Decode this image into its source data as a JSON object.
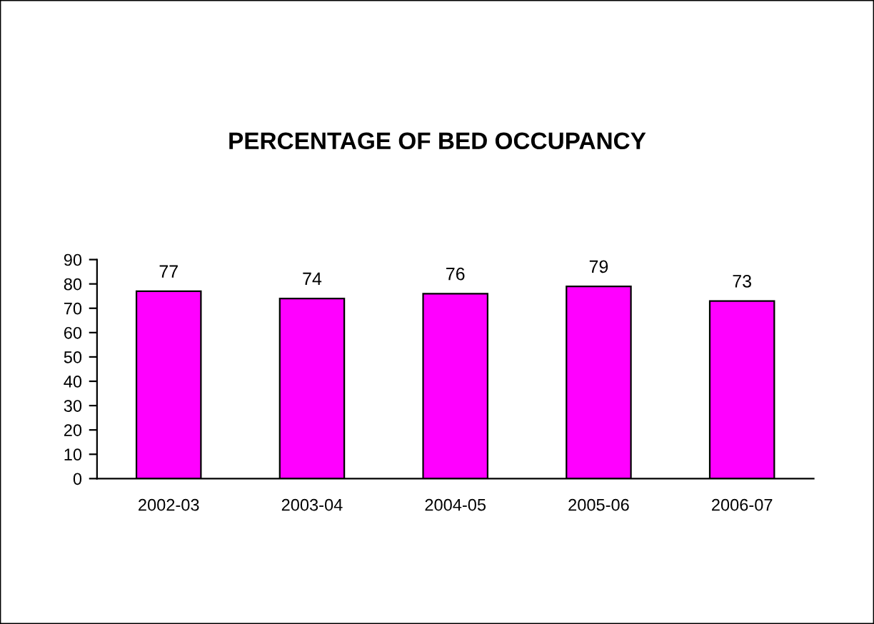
{
  "chart_data": {
    "type": "bar",
    "title": "PERCENTAGE OF BED OCCUPANCY",
    "categories": [
      "2002-03",
      "2003-04",
      "2004-05",
      "2005-06",
      "2006-07"
    ],
    "values": [
      77,
      74,
      76,
      79,
      73
    ],
    "color": "#ff00ff",
    "ylim": [
      0,
      90
    ],
    "yticks": [
      0,
      10,
      20,
      30,
      40,
      50,
      60,
      70,
      80,
      90
    ],
    "data_labels": true,
    "grid": false,
    "legend": false
  }
}
